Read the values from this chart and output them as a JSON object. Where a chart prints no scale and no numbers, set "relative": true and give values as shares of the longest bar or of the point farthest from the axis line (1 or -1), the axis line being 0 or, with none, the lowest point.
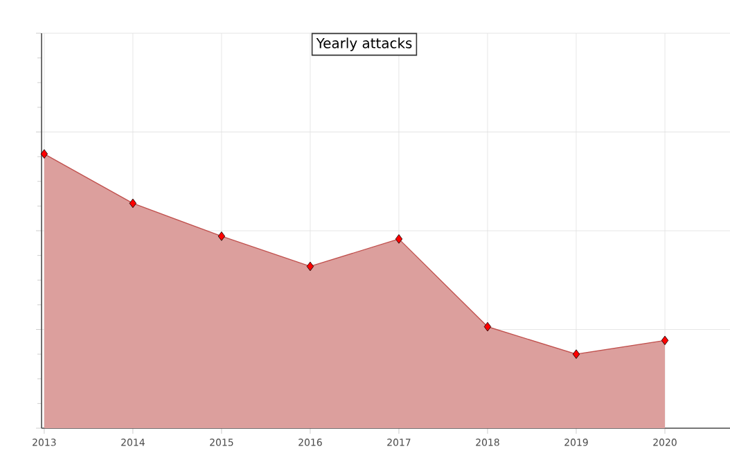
{
  "chart_data": {
    "type": "area",
    "title": "Yearly attacks",
    "relative": true,
    "categories": [
      "2013",
      "2014",
      "2015",
      "2016",
      "2017",
      "2018",
      "2019",
      "2020"
    ],
    "series": [
      {
        "color": "#c0504d",
        "values": [
          1,
          0.82,
          0.7,
          0.59,
          0.69,
          0.37,
          0.27,
          0.32
        ]
      }
    ],
    "marker": "diamond",
    "grid": true
  }
}
